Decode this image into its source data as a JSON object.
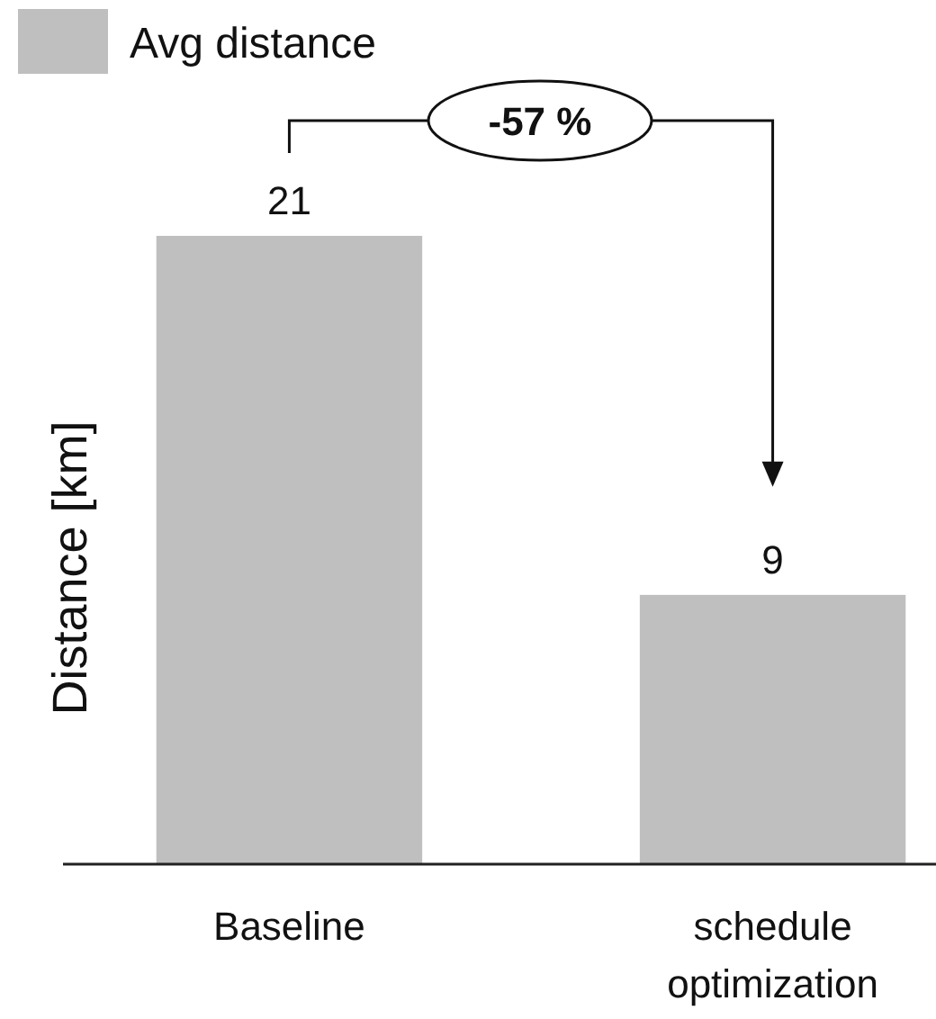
{
  "chart_data": {
    "type": "bar",
    "ylabel": "Distance [km]",
    "categories": [
      "Baseline",
      "schedule optimization"
    ],
    "series": [
      {
        "name": "Avg distance",
        "color": "#bfbfbf",
        "values": [
          21,
          9
        ]
      }
    ],
    "data_labels": true,
    "legend": "top left",
    "annotations": [
      "-57 %"
    ]
  }
}
